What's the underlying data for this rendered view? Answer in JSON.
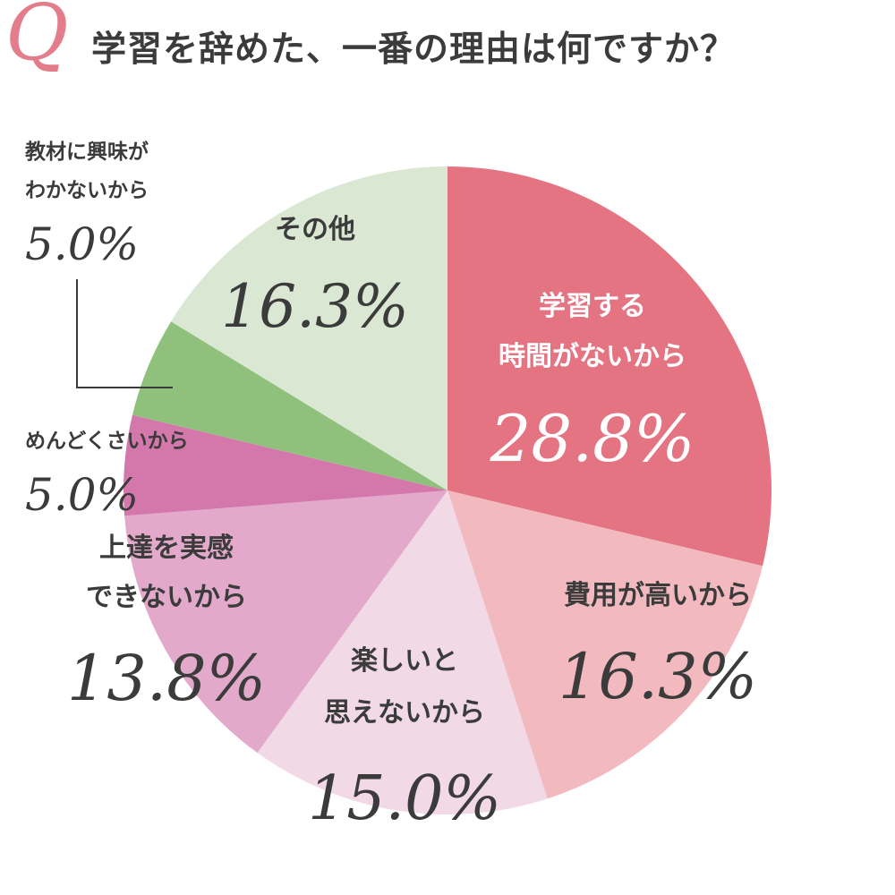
{
  "header": {
    "q_mark": "Q",
    "title": "学習を辞めた、一番の理由は何ですか？"
  },
  "chart_data": {
    "type": "pie",
    "title": "学習を辞めた、一番の理由は何ですか？",
    "slices": [
      {
        "label_lines": [
          "学習する",
          "時間がないから"
        ],
        "value": 28.8,
        "value_text": "28.8%",
        "color": "#e47482"
      },
      {
        "label_lines": [
          "費用が高いから"
        ],
        "value": 16.3,
        "value_text": "16.3%",
        "color": "#f2babf"
      },
      {
        "label_lines": [
          "楽しいと",
          "思えないから"
        ],
        "value": 15.0,
        "value_text": "15.0%",
        "color": "#f2d9e6"
      },
      {
        "label_lines": [
          "上達を実感",
          "できないから"
        ],
        "value": 13.8,
        "value_text": "13.8%",
        "color": "#e2a9cb"
      },
      {
        "label_lines": [
          "めんどくさいから"
        ],
        "value": 5.0,
        "value_text": "5.0%",
        "color": "#d478ab"
      },
      {
        "label_lines": [
          "教材に興味が",
          "わかないから"
        ],
        "value": 5.0,
        "value_text": "5.0%",
        "color": "#8fc07c"
      },
      {
        "label_lines": [
          "その他"
        ],
        "value": 16.3,
        "value_text": "16.3%",
        "color": "#d9e7d3"
      }
    ],
    "start_angle": "12 o'clock",
    "direction": "clockwise"
  },
  "colors": {
    "accent": "#e37d8c",
    "title_text": "#3b3b3b",
    "label_dark": "#3b3b3b",
    "label_light": "#ffffff"
  }
}
